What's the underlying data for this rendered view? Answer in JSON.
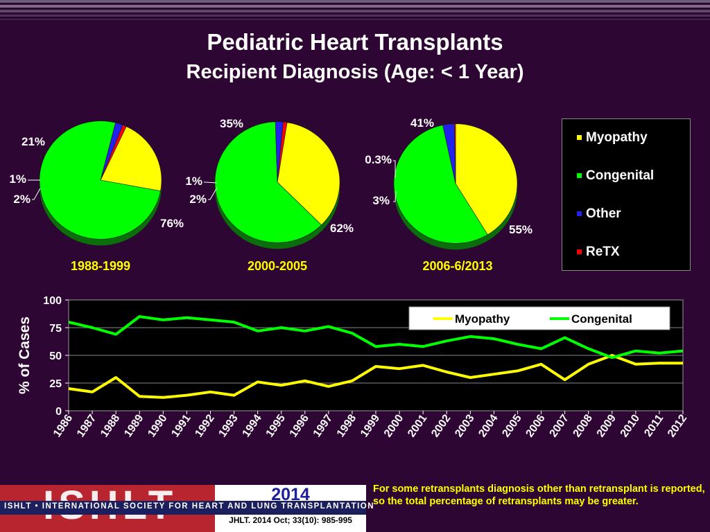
{
  "title": "Pediatric Heart Transplants",
  "subtitle": "Recipient Diagnosis (Age: < 1 Year)",
  "colors": {
    "myopathy": "#ffff00",
    "congenital": "#00ff00",
    "other": "#2222ee",
    "retx": "#ff0000",
    "background": "#2e0633"
  },
  "pie_legend": [
    "Myopathy",
    "Congenital",
    "Other",
    "ReTX"
  ],
  "chart_data": [
    {
      "type": "pie",
      "title": "1988-1999",
      "categories": [
        "Myopathy",
        "Congenital",
        "Other",
        "ReTX"
      ],
      "values": [
        21,
        76,
        2,
        1
      ],
      "labels": [
        "21%",
        "76%",
        "2%",
        "1%"
      ]
    },
    {
      "type": "pie",
      "title": "2000-2005",
      "categories": [
        "Myopathy",
        "Congenital",
        "Other",
        "ReTX"
      ],
      "values": [
        35,
        62,
        2,
        1
      ],
      "labels": [
        "35%",
        "62%",
        "2%",
        "1%"
      ]
    },
    {
      "type": "pie",
      "title": "2006-6/2013",
      "categories": [
        "Myopathy",
        "Congenital",
        "Other",
        "ReTX"
      ],
      "values": [
        41,
        55,
        3,
        0.3
      ],
      "labels": [
        "41%",
        "55%",
        "3%",
        "0.3%"
      ]
    },
    {
      "type": "line",
      "x": [
        "1986",
        "1987",
        "1988",
        "1989",
        "1990",
        "1991",
        "1992",
        "1993",
        "1994",
        "1995",
        "1996",
        "1997",
        "1998",
        "1999",
        "2000",
        "2001",
        "2002",
        "2003",
        "2004",
        "2005",
        "2006",
        "2007",
        "2008",
        "2009",
        "2010",
        "2011",
        "2012"
      ],
      "series": [
        {
          "name": "Myopathy",
          "values": [
            20,
            17,
            30,
            13,
            12,
            14,
            17,
            14,
            26,
            23,
            27,
            22,
            27,
            40,
            38,
            41,
            35,
            30,
            33,
            36,
            42,
            28,
            42,
            50,
            42,
            43,
            43
          ]
        },
        {
          "name": "Congenital",
          "values": [
            80,
            75,
            69,
            85,
            82,
            84,
            82,
            80,
            72,
            75,
            72,
            76,
            70,
            58,
            60,
            58,
            63,
            67,
            65,
            60,
            56,
            66,
            56,
            48,
            54,
            52,
            54
          ]
        }
      ],
      "ylabel": "% of Cases",
      "ylim": [
        0,
        100
      ],
      "yticks": [
        "0",
        "25",
        "50",
        "75",
        "100"
      ],
      "legend": "top-right",
      "grid": true
    }
  ],
  "footer": {
    "logo_text": "ISHLT",
    "org_name": "ISHLT • INTERNATIONAL SOCIETY FOR HEART AND LUNG TRANSPLANTATION",
    "year": "2014",
    "citation": "JHLT. 2014 Oct; 33(10): 985-995",
    "note": "For some retransplants diagnosis other than retransplant is reported, so the total percentage of retransplants may be greater."
  }
}
